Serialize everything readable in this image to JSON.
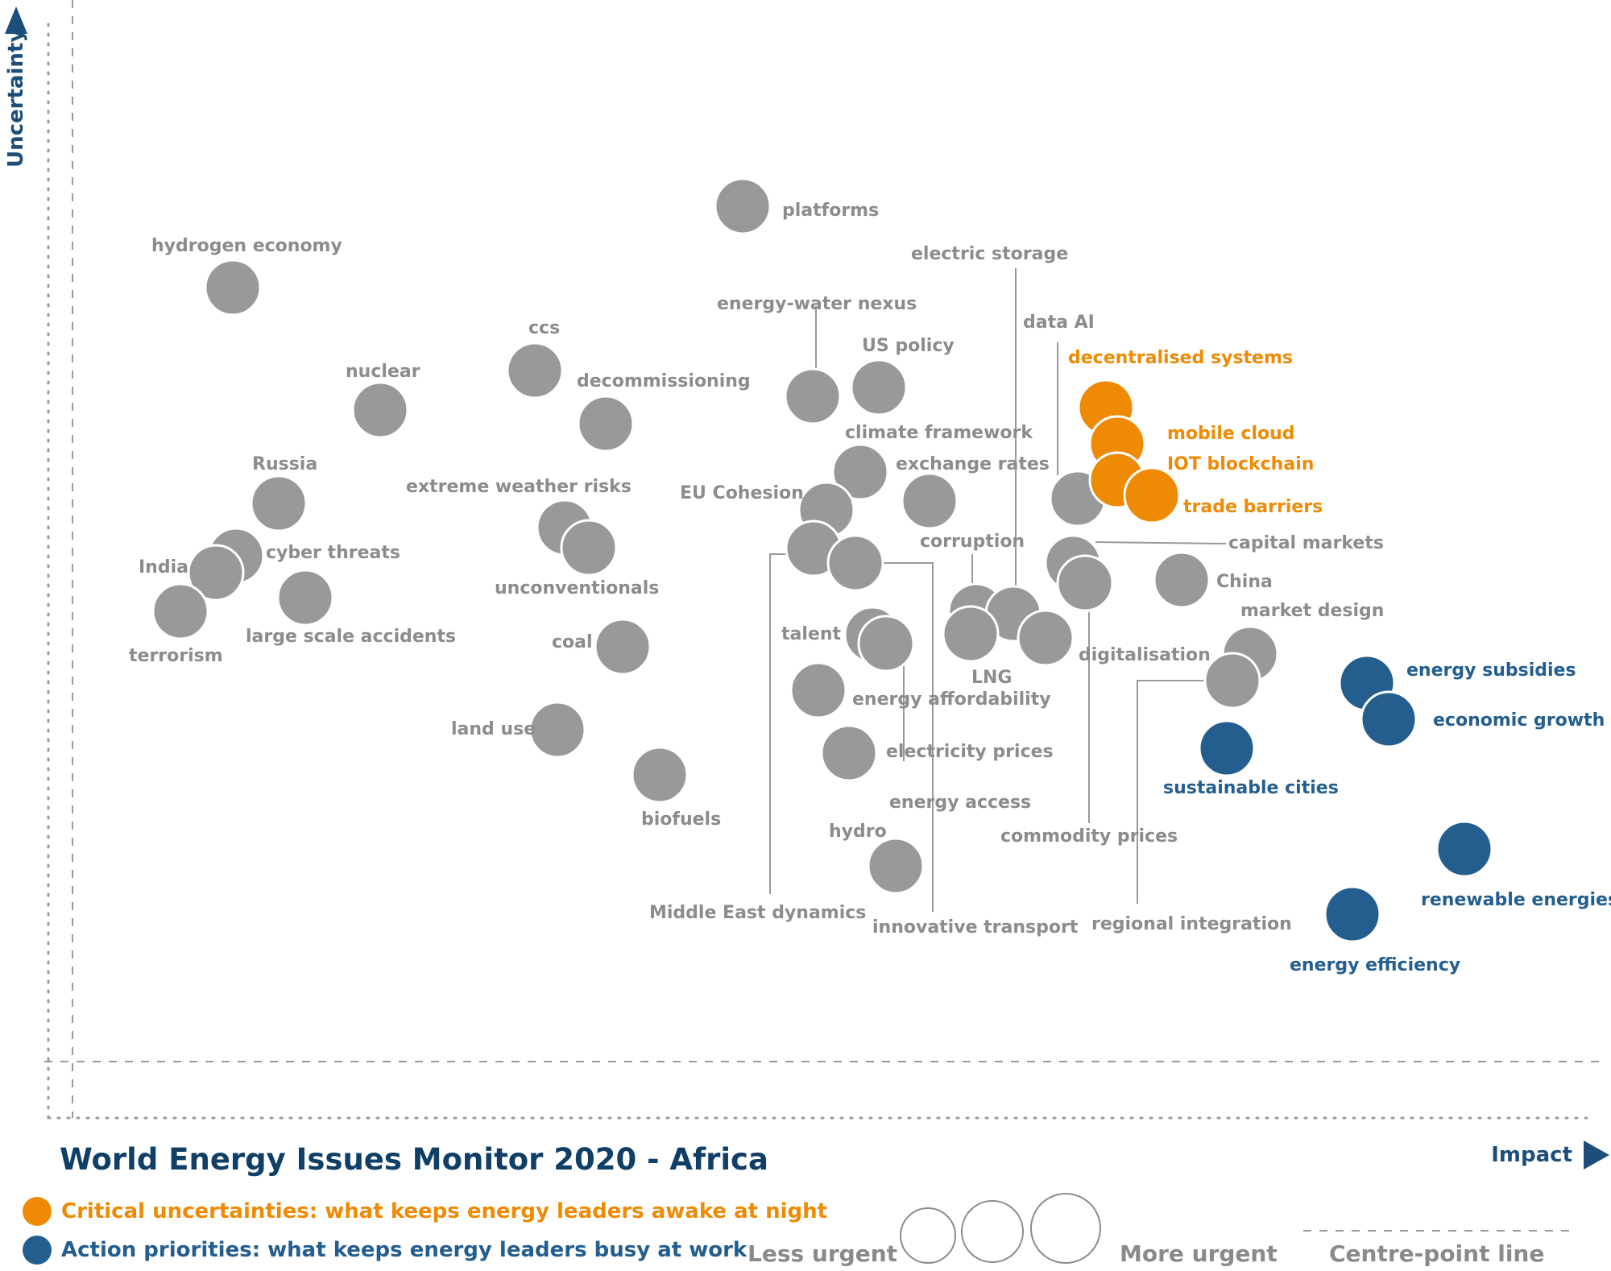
{
  "colors": {
    "critical": "#ee8a03",
    "action": "#235e8f",
    "other": "#999999",
    "label_other": "#8c8c8c",
    "axis": "#1d4e7a",
    "title": "#0f3e66"
  },
  "chart_data": {
    "type": "scatter",
    "title": "World Energy Issues Monitor 2020 - Africa",
    "xlabel": "Impact",
    "ylabel": "Uncertainty",
    "centre_point_line": "Centre-point  line",
    "legend": {
      "critical": "Critical uncertainties: what keeps energy leaders awake at night",
      "action": "Action priorities: what keeps energy leaders busy at work",
      "less_urgent": "Less urgent",
      "more_urgent": "More urgent"
    },
    "points": [
      {
        "label": "hydrogen economy",
        "category": "other",
        "impact": 289,
        "uncertainty": 357
      },
      {
        "label": "platforms",
        "category": "other",
        "impact": 922,
        "uncertainty": 256
      },
      {
        "label": "ccs",
        "category": "other",
        "impact": 664,
        "uncertainty": 460
      },
      {
        "label": "nuclear",
        "category": "other",
        "impact": 472,
        "uncertainty": 509
      },
      {
        "label": "decommissioning",
        "category": "other",
        "impact": 752,
        "uncertainty": 526
      },
      {
        "label": "energy-water nexus",
        "category": "other",
        "impact": 1009,
        "uncertainty": 492
      },
      {
        "label": "US policy",
        "category": "other",
        "impact": 1091,
        "uncertainty": 481
      },
      {
        "label": "climate framework",
        "category": "other",
        "impact": 1068,
        "uncertainty": 586
      },
      {
        "label": "exchange rates",
        "category": "other",
        "impact": 1154,
        "uncertainty": 622
      },
      {
        "label": "EU Cohesion",
        "category": "other",
        "impact": 1026,
        "uncertainty": 633
      },
      {
        "label": "Russia",
        "category": "other",
        "impact": 346,
        "uncertainty": 625
      },
      {
        "label": "extreme weather risks",
        "category": "other",
        "impact": 701,
        "uncertainty": 655
      },
      {
        "label": "unconventionals",
        "category": "other",
        "impact": 731,
        "uncertainty": 680
      },
      {
        "label": "cyber threats",
        "category": "other",
        "impact": 293,
        "uncertainty": 690
      },
      {
        "label": "India",
        "category": "other",
        "impact": 268,
        "uncertainty": 711
      },
      {
        "label": "terrorism",
        "category": "other",
        "impact": 224,
        "uncertainty": 759
      },
      {
        "label": "large scale accidents",
        "category": "other",
        "impact": 379,
        "uncertainty": 742
      },
      {
        "label": "coal",
        "category": "other",
        "impact": 773,
        "uncertainty": 803
      },
      {
        "label": "land use",
        "category": "other",
        "impact": 692,
        "uncertainty": 906
      },
      {
        "label": "biofuels",
        "category": "other",
        "impact": 819,
        "uncertainty": 962
      },
      {
        "label": "Middle East dynamics",
        "category": "other",
        "impact": 1010,
        "uncertainty": 681
      },
      {
        "label": "innovative transport",
        "category": "other",
        "impact": 1062,
        "uncertainty": 699
      },
      {
        "label": "talent",
        "category": "other",
        "impact": 1083,
        "uncertainty": 788
      },
      {
        "label": "energy access",
        "category": "other",
        "impact": 1100,
        "uncertainty": 799
      },
      {
        "label": "energy affordability",
        "category": "other",
        "impact": 1016,
        "uncertainty": 857
      },
      {
        "label": "electricity prices",
        "category": "other",
        "impact": 1054,
        "uncertainty": 935
      },
      {
        "label": "hydro",
        "category": "other",
        "impact": 1112,
        "uncertainty": 1075
      },
      {
        "label": "corruption",
        "category": "other",
        "impact": 1212,
        "uncertainty": 759
      },
      {
        "label": "electric storage",
        "category": "other",
        "impact": 1258,
        "uncertainty": 762
      },
      {
        "label": "LNG",
        "category": "other",
        "impact": 1205,
        "uncertainty": 787
      },
      {
        "label": "regional integration",
        "category": "other",
        "impact": 1298,
        "uncertainty": 792
      },
      {
        "label": "data AI",
        "category": "other",
        "impact": 1338,
        "uncertainty": 619
      },
      {
        "label": "capital markets",
        "category": "other",
        "impact": 1332,
        "uncertainty": 699
      },
      {
        "label": "commodity prices",
        "category": "other",
        "impact": 1347,
        "uncertainty": 724
      },
      {
        "label": "China",
        "category": "other",
        "impact": 1467,
        "uncertainty": 720
      },
      {
        "label": "market design",
        "category": "other",
        "impact": 1552,
        "uncertainty": 812
      },
      {
        "label": "digitalisation",
        "category": "other",
        "impact": 1530,
        "uncertainty": 845
      },
      {
        "label": "decentralised systems",
        "category": "critical",
        "impact": 1373,
        "uncertainty": 506
      },
      {
        "label": "mobile cloud",
        "category": "critical",
        "impact": 1387,
        "uncertainty": 551
      },
      {
        "label": "IOT blockchain",
        "category": "critical",
        "impact": 1387,
        "uncertainty": 596
      },
      {
        "label": "trade barriers",
        "category": "critical",
        "impact": 1430,
        "uncertainty": 615
      },
      {
        "label": "energy subsidies",
        "category": "action",
        "impact": 1697,
        "uncertainty": 848
      },
      {
        "label": "economic growth",
        "category": "action",
        "impact": 1724,
        "uncertainty": 893
      },
      {
        "label": "sustainable cities",
        "category": "action",
        "impact": 1523,
        "uncertainty": 929
      },
      {
        "label": "renewable energies",
        "category": "action",
        "impact": 1818,
        "uncertainty": 1054
      },
      {
        "label": "energy efficiency",
        "category": "action",
        "impact": 1679,
        "uncertainty": 1135
      }
    ]
  }
}
